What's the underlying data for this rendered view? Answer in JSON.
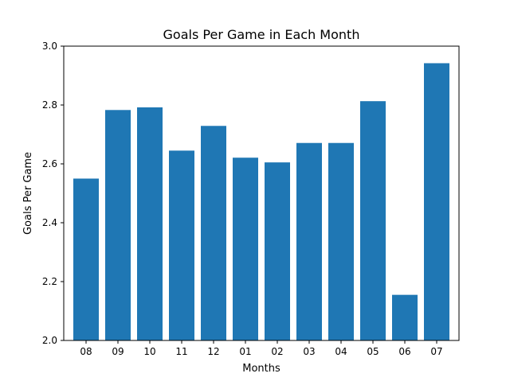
{
  "chart_data": {
    "type": "bar",
    "title": "Goals Per Game in Each Month",
    "xlabel": "Months",
    "ylabel": "Goals Per Game",
    "categories": [
      "08",
      "09",
      "10",
      "11",
      "12",
      "01",
      "02",
      "03",
      "04",
      "05",
      "06",
      "07"
    ],
    "values": [
      2.55,
      2.783,
      2.792,
      2.645,
      2.729,
      2.621,
      2.605,
      2.671,
      2.671,
      2.813,
      2.155,
      2.942
    ],
    "ylim": [
      2.0,
      3.0
    ],
    "yticks": [
      "2.0",
      "2.2",
      "2.4",
      "2.6",
      "2.8",
      "3.0"
    ],
    "bar_color": "#1f77b4",
    "grid": false,
    "legend": "none"
  }
}
